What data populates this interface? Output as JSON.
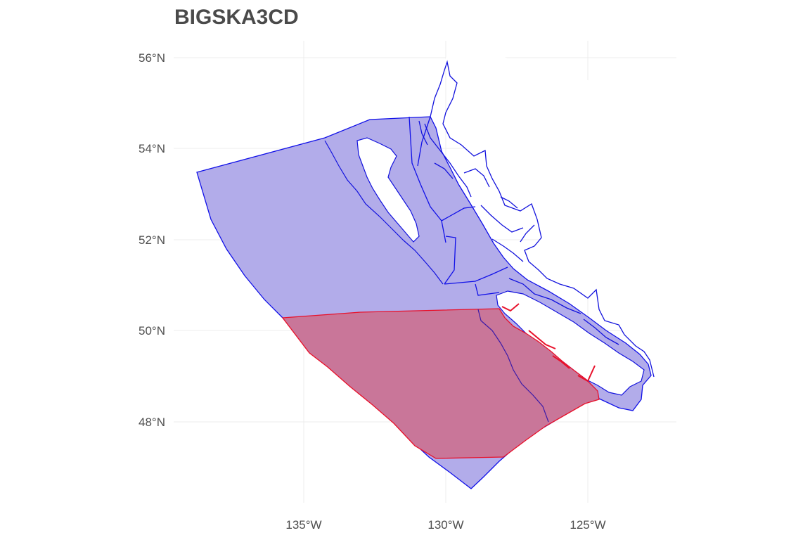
{
  "title": "BIGSKA3CD",
  "colors": {
    "grid": "#ececec",
    "region_fill": "#b2acea",
    "region_stroke": "#1010e8",
    "highlight_fill": "#c97699",
    "highlight_stroke": "#e8102a",
    "coast_stroke": "#1212dd"
  },
  "axes": {
    "lat_labels": [
      "56°N",
      "54°N",
      "52°N",
      "50°N",
      "48°N"
    ],
    "lon_labels": [
      "135°W",
      "130°W",
      "125°W"
    ],
    "lat_values": [
      56,
      54,
      52,
      50,
      48
    ],
    "lon_values": [
      -135,
      -130,
      -125
    ]
  }
}
